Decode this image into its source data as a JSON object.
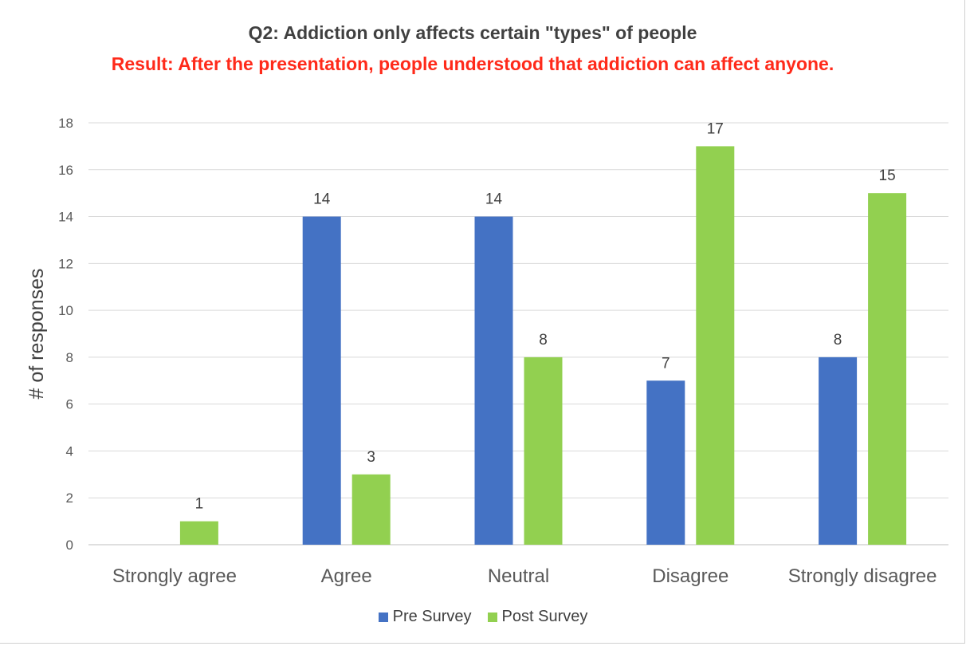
{
  "chart_data": {
    "type": "bar",
    "title": "Q2: Addiction only affects certain \"types\" of people",
    "subtitle": "Result: After the presentation, people understood that addiction can affect anyone.",
    "xlabel": "",
    "ylabel": "# of responses",
    "ylim": [
      0,
      18
    ],
    "yticks": [
      0,
      2,
      4,
      6,
      8,
      10,
      12,
      14,
      16,
      18
    ],
    "grid": true,
    "legend_position": "bottom",
    "categories": [
      "Strongly agree",
      "Agree",
      "Neutral",
      "Disagree",
      "Strongly disagree"
    ],
    "series": [
      {
        "name": "Pre Survey",
        "color": "#4472c4",
        "values": [
          0,
          14,
          14,
          7,
          8
        ],
        "labels": [
          "",
          "14",
          "14",
          "7",
          "8"
        ]
      },
      {
        "name": "Post Survey",
        "color": "#92d050",
        "values": [
          1,
          3,
          8,
          17,
          15
        ],
        "labels": [
          "1",
          "3",
          "8",
          "17",
          "15"
        ]
      }
    ]
  }
}
